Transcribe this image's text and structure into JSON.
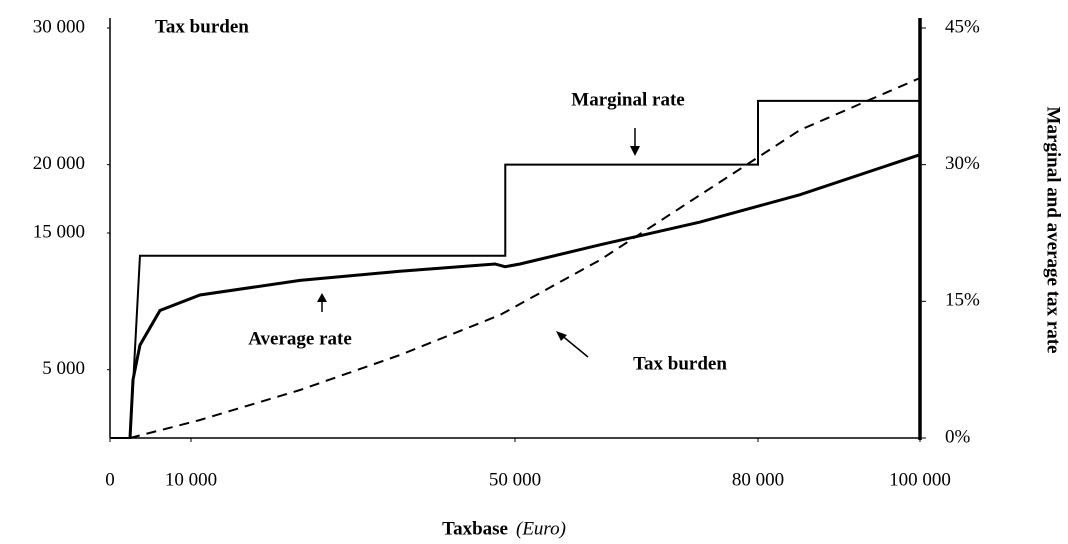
{
  "chart_data": {
    "type": "line",
    "y_label": "Tax burden",
    "y2_label": "Marginal and average tax rate",
    "x_label": "Taxbase",
    "x_label_unit": "(Euro)",
    "xlim": [
      0,
      100000
    ],
    "xticks": [
      0,
      {
        "value": 10000,
        "label": "10 000"
      },
      {
        "value": 50000,
        "label": "50 000"
      },
      {
        "value": 80000,
        "label": "80 000"
      },
      {
        "value": 100000,
        "label": "100 000"
      }
    ],
    "ylim": [
      0,
      30000
    ],
    "yticks": [
      {
        "value": 5000,
        "label": "5 000"
      },
      {
        "value": 15000,
        "label": "15 000"
      },
      {
        "value": 20000,
        "label": "20 000"
      },
      {
        "value": 30000,
        "label": "30 000"
      }
    ],
    "y2lim": [
      0,
      45
    ],
    "y2ticks": [
      {
        "value": 0,
        "label": "0%"
      },
      {
        "value": 15,
        "label": "15%"
      },
      {
        "value": 30,
        "label": "30%"
      },
      {
        "value": 45,
        "label": "45%"
      }
    ],
    "grid": false,
    "series": [
      {
        "name": "Marginal rate",
        "axis": "y2",
        "color": "#000000",
        "dashed": false,
        "width": 2,
        "x": [
          0,
          2500,
          3700,
          48800,
          48800,
          80000,
          80000,
          100000
        ],
        "values": [
          0,
          0,
          20,
          20,
          30,
          30,
          37,
          37
        ]
      },
      {
        "name": "Average rate",
        "axis": "y2",
        "color": "#000000",
        "dashed": false,
        "width": 3,
        "x": [
          2470,
          2840,
          3700,
          6170,
          11110,
          23460,
          35800,
          47530,
          48770,
          50620,
          60490,
          72840,
          85190,
          100000
        ],
        "values": [
          0,
          6.4,
          10.2,
          14,
          15.7,
          17.3,
          18.3,
          19.1,
          18.8,
          19.1,
          21.2,
          23.7,
          26.7,
          31.1
        ]
      },
      {
        "name": "Tax burden",
        "axis": "y",
        "color": "#000000",
        "dashed": true,
        "width": 2,
        "x": [
          2470,
          11110,
          23460,
          35800,
          48150,
          60490,
          72840,
          85190,
          100000
        ],
        "values": [
          0,
          1317,
          3512,
          6073,
          9000,
          13024,
          17780,
          22537,
          26341
        ]
      }
    ]
  }
}
